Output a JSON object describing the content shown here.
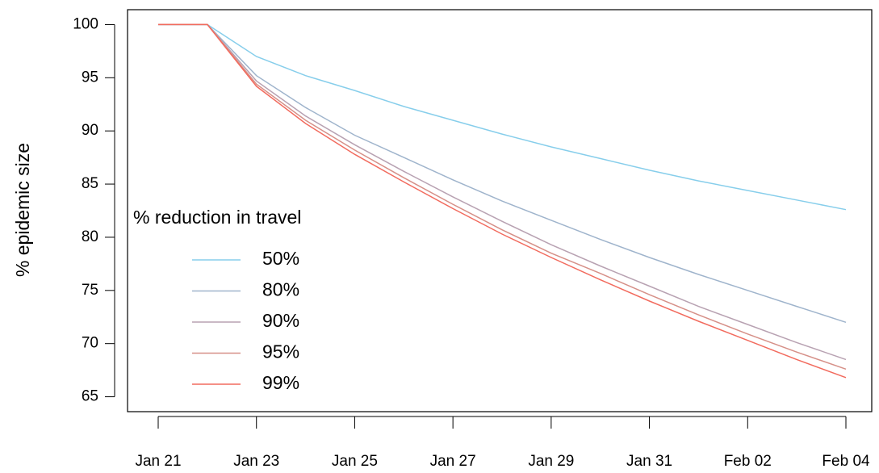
{
  "chart_data": {
    "type": "line",
    "y_label": "% epidemic size",
    "legend_title": "% reduction in travel",
    "legend_position": "left",
    "categories": [
      "Jan 21",
      null,
      "Jan 23",
      null,
      "Jan 25",
      null,
      "Jan 27",
      null,
      "Jan 29",
      null,
      "Jan 31",
      null,
      "Feb 02",
      null,
      "Feb 04"
    ],
    "ylim": [
      63.6,
      101.4
    ],
    "yticks": [
      65,
      70,
      75,
      80,
      85,
      90,
      95,
      100
    ],
    "series": [
      {
        "name": "50%",
        "color": "#87ceeb",
        "values": [
          100,
          100,
          97.0,
          95.2,
          93.8,
          92.3,
          91.0,
          89.7,
          88.5,
          87.4,
          86.3,
          85.3,
          84.4,
          83.5,
          82.6
        ]
      },
      {
        "name": "80%",
        "color": "#9fb4cc",
        "values": [
          100,
          100,
          95.2,
          92.2,
          89.6,
          87.5,
          85.4,
          83.4,
          81.6,
          79.8,
          78.1,
          76.5,
          75.0,
          73.5,
          72.0
        ]
      },
      {
        "name": "90%",
        "color": "#b8a2b2",
        "values": [
          100,
          100,
          94.7,
          91.4,
          88.7,
          86.2,
          83.8,
          81.5,
          79.3,
          77.3,
          75.4,
          73.5,
          71.8,
          70.1,
          68.5
        ]
      },
      {
        "name": "95%",
        "color": "#d69088",
        "values": [
          100,
          100,
          94.4,
          91.0,
          88.2,
          85.6,
          83.1,
          80.7,
          78.5,
          76.6,
          74.6,
          72.7,
          70.9,
          69.2,
          67.6
        ]
      },
      {
        "name": "99%",
        "color": "#f26b5e",
        "values": [
          100,
          100,
          94.2,
          90.7,
          87.8,
          85.2,
          82.7,
          80.3,
          78.1,
          76.0,
          74.0,
          72.1,
          70.3,
          68.5,
          66.8
        ]
      }
    ]
  }
}
